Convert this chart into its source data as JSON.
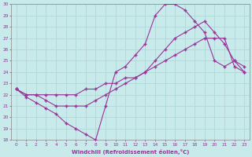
{
  "xlabel": "Windchill (Refroidissement éolien,°C)",
  "xlim": [
    -0.5,
    23.5
  ],
  "ylim": [
    18,
    30
  ],
  "xticks": [
    0,
    1,
    2,
    3,
    4,
    5,
    6,
    7,
    8,
    9,
    10,
    11,
    12,
    13,
    14,
    15,
    16,
    17,
    18,
    19,
    20,
    21,
    22,
    23
  ],
  "yticks": [
    18,
    19,
    20,
    21,
    22,
    23,
    24,
    25,
    26,
    27,
    28,
    29,
    30
  ],
  "bg_color": "#c8eaea",
  "line_color": "#993399",
  "grid_color": "#b0d8d8",
  "line1_x": [
    0,
    1,
    2,
    3,
    4,
    5,
    6,
    7,
    8,
    9,
    10,
    11,
    12,
    13,
    14,
    15,
    16,
    17,
    18,
    19,
    20,
    21,
    22,
    23
  ],
  "line1_y": [
    22.5,
    21.8,
    21.3,
    20.8,
    20.3,
    19.5,
    19.0,
    18.5,
    18.0,
    21.0,
    24.0,
    24.5,
    25.5,
    26.5,
    29.0,
    30.0,
    30.0,
    29.5,
    28.5,
    27.5,
    25.0,
    24.5,
    25.0,
    24.0
  ],
  "line2_x": [
    0,
    1,
    2,
    3,
    4,
    5,
    6,
    7,
    8,
    9,
    10,
    11,
    12,
    13,
    14,
    15,
    16,
    17,
    18,
    19,
    20,
    21,
    22,
    23
  ],
  "line2_y": [
    22.5,
    22.0,
    22.0,
    21.5,
    21.0,
    21.0,
    21.0,
    21.0,
    21.5,
    22.0,
    22.5,
    23.0,
    23.5,
    24.0,
    25.0,
    26.0,
    27.0,
    27.5,
    28.0,
    28.5,
    27.5,
    26.5,
    25.0,
    24.5
  ],
  "line3_x": [
    0,
    1,
    2,
    3,
    4,
    5,
    6,
    7,
    8,
    9,
    10,
    11,
    12,
    13,
    14,
    15,
    16,
    17,
    18,
    19,
    20,
    21,
    22,
    23
  ],
  "line3_y": [
    22.5,
    22.0,
    22.0,
    22.0,
    22.0,
    22.0,
    22.0,
    22.5,
    22.5,
    23.0,
    23.0,
    23.5,
    23.5,
    24.0,
    24.5,
    25.0,
    25.5,
    26.0,
    26.5,
    27.0,
    27.0,
    27.0,
    24.5,
    24.0
  ],
  "figsize": [
    3.2,
    2.0
  ],
  "dpi": 100
}
